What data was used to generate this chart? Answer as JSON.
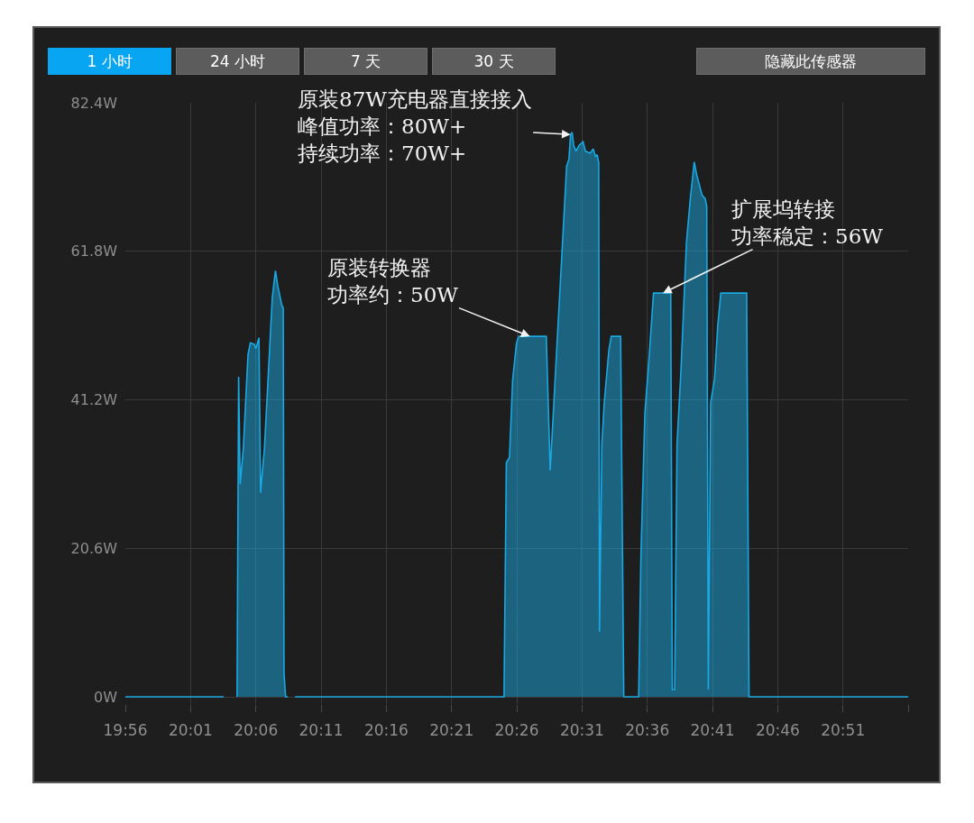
{
  "chart_data": {
    "type": "area",
    "xlim": [
      19.9333,
      20.9333
    ],
    "xticks": [
      {
        "value": 19.9333,
        "label": "19:56"
      },
      {
        "value": 20.0167,
        "label": "20:01"
      },
      {
        "value": 20.1,
        "label": "20:06"
      },
      {
        "value": 20.1833,
        "label": "20:11"
      },
      {
        "value": 20.2667,
        "label": "20:16"
      },
      {
        "value": 20.35,
        "label": "20:21"
      },
      {
        "value": 20.4333,
        "label": "20:26"
      },
      {
        "value": 20.5167,
        "label": "20:31"
      },
      {
        "value": 20.6,
        "label": "20:36"
      },
      {
        "value": 20.6833,
        "label": "20:41"
      },
      {
        "value": 20.7667,
        "label": "20:46"
      },
      {
        "value": 20.85,
        "label": "20:51"
      },
      {
        "value": 20.9333,
        "label": null
      }
    ],
    "ylim": [
      -1,
      82.4
    ],
    "yticks": [
      {
        "value": 0,
        "label": "0W"
      },
      {
        "value": 20.6,
        "label": "20.6W"
      },
      {
        "value": 41.2,
        "label": "41.2W"
      },
      {
        "value": 61.8,
        "label": "61.8W"
      },
      {
        "value": 82.4,
        "label": "82.4W"
      }
    ],
    "grid": true,
    "x": [
      19.9333,
      20.059,
      20.061,
      20.076,
      20.078,
      20.08,
      20.084,
      20.09,
      20.093,
      20.098,
      20.1,
      20.104,
      20.106,
      20.111,
      20.117,
      20.121,
      20.125,
      20.128,
      20.133,
      20.135,
      20.136,
      20.138,
      20.141,
      20.144,
      20.15,
      20.417,
      20.42,
      20.424,
      20.428,
      20.433,
      20.436,
      20.471,
      20.476,
      20.497,
      20.5,
      20.502,
      20.504,
      20.506,
      20.509,
      20.513,
      20.518,
      20.521,
      20.527,
      20.531,
      20.534,
      20.536,
      20.538,
      20.539,
      20.542,
      20.545,
      20.551,
      20.554,
      20.566,
      20.57,
      20.589,
      20.592,
      20.597,
      20.602,
      20.608,
      20.63,
      20.632,
      20.635,
      20.638,
      20.643,
      20.65,
      20.655,
      20.66,
      20.663,
      20.67,
      20.674,
      20.676,
      20.678,
      20.681,
      20.686,
      20.69,
      20.694,
      20.727,
      20.73,
      20.9333
    ],
    "series": [
      {
        "color": "#1aa8e2",
        "values": [
          0,
          0,
          null,
          0,
          44.4,
          29.5,
          34.5,
          47.5,
          49.1,
          48.9,
          48.3,
          49.8,
          28.3,
          34.5,
          47,
          55.4,
          59.1,
          57,
          54.4,
          53.9,
          3.3,
          0,
          0,
          null,
          0,
          0,
          32.5,
          33.2,
          43.9,
          49.1,
          50,
          50,
          31.4,
          73.6,
          74.6,
          78,
          78.3,
          76.5,
          75.7,
          76.5,
          77,
          75.7,
          75.4,
          76,
          74.9,
          75.2,
          74.1,
          9,
          35,
          40.8,
          48.1,
          50,
          50,
          0,
          0,
          20,
          39.4,
          46.5,
          56,
          56,
          1,
          1,
          35,
          45.1,
          62.9,
          69.1,
          74.2,
          72.5,
          69.6,
          69.1,
          68,
          1,
          40.8,
          44.1,
          51.4,
          56,
          56,
          0,
          0
        ]
      }
    ],
    "annotations": [
      "1 小时",
      "24 小时",
      "7 天",
      "30 天",
      "隐藏此传感器",
      {
        "text": "原装87W充电器直接接入峰值功率：80W+持续功率：70W+",
        "x": 20.502,
        "y": 78
      },
      {
        "text": "原装转换器功率约：50W",
        "x": 20.45,
        "y": 50
      },
      {
        "text": "扩展坞转接功率稳定：56W",
        "x": 20.62,
        "y": 56
      }
    ]
  }
}
